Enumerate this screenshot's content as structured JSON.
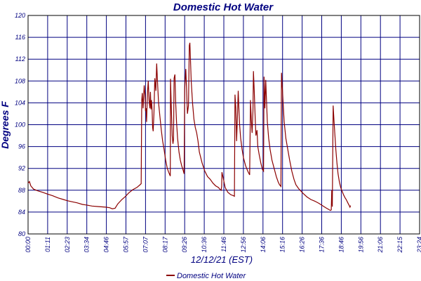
{
  "chart_data": {
    "type": "line",
    "title": "Domestic Hot Water",
    "xlabel": "12/12/21 (EST)",
    "ylabel": "Degrees F",
    "ylim": [
      80,
      120
    ],
    "y_ticks": [
      "80",
      "84",
      "88",
      "92",
      "96",
      "100",
      "104",
      "108",
      "112",
      "116",
      "120"
    ],
    "x_range_minutes": [
      0,
      1440
    ],
    "x_ticks": [
      "00:00",
      "01:11",
      "02:23",
      "03:34",
      "04:46",
      "05:57",
      "07:07",
      "08:17",
      "09:26",
      "10:36",
      "11:46",
      "12:56",
      "14:06",
      "15:16",
      "16:26",
      "17:36",
      "18:46",
      "19:56",
      "21:06",
      "22:15",
      "23:24"
    ],
    "legend": {
      "position": "bottom-center",
      "label": "Domestic Hot Water"
    },
    "grid": true,
    "colors": {
      "line": "#8b0000",
      "text": "#000080",
      "grid": "#000080",
      "axis": "#000000"
    },
    "series": [
      {
        "name": "Domestic Hot Water",
        "points": [
          [
            0,
            89.3
          ],
          [
            5,
            89.6
          ],
          [
            10,
            88.8
          ],
          [
            20,
            88.2
          ],
          [
            35,
            87.9
          ],
          [
            55,
            87.6
          ],
          [
            71,
            87.3
          ],
          [
            90,
            87.0
          ],
          [
            110,
            86.6
          ],
          [
            130,
            86.3
          ],
          [
            143,
            86.1
          ],
          [
            160,
            85.9
          ],
          [
            180,
            85.7
          ],
          [
            200,
            85.4
          ],
          [
            214,
            85.3
          ],
          [
            235,
            85.1
          ],
          [
            260,
            85.0
          ],
          [
            286,
            84.9
          ],
          [
            300,
            84.8
          ],
          [
            310,
            84.6
          ],
          [
            320,
            84.7
          ],
          [
            330,
            85.5
          ],
          [
            345,
            86.3
          ],
          [
            357,
            86.8
          ],
          [
            370,
            87.5
          ],
          [
            385,
            88.1
          ],
          [
            400,
            88.5
          ],
          [
            412,
            89.0
          ],
          [
            416,
            89.2
          ],
          [
            418,
            104.5
          ],
          [
            420,
            105.8
          ],
          [
            423,
            103.0
          ],
          [
            427,
            107.2
          ],
          [
            430,
            105.5
          ],
          [
            432,
            102.5
          ],
          [
            434,
            103.0
          ],
          [
            436,
            100.5
          ],
          [
            438,
            104.0
          ],
          [
            440,
            106.5
          ],
          [
            442,
            108.0
          ],
          [
            445,
            104.5
          ],
          [
            448,
            103.0
          ],
          [
            450,
            106.0
          ],
          [
            452,
            102.8
          ],
          [
            454,
            104.5
          ],
          [
            456,
            103.0
          ],
          [
            458,
            99.5
          ],
          [
            460,
            98.8
          ],
          [
            463,
            102.0
          ],
          [
            466,
            108.5
          ],
          [
            470,
            106.2
          ],
          [
            473,
            111.2
          ],
          [
            477,
            107.0
          ],
          [
            480,
            104.0
          ],
          [
            485,
            101.5
          ],
          [
            490,
            99.0
          ],
          [
            495,
            97.0
          ],
          [
            500,
            95.5
          ],
          [
            506,
            93.5
          ],
          [
            512,
            92.0
          ],
          [
            518,
            91.2
          ],
          [
            523,
            90.6
          ],
          [
            524,
            108.4
          ],
          [
            527,
            103.0
          ],
          [
            530,
            98.0
          ],
          [
            533,
            96.5
          ],
          [
            535,
            97.3
          ],
          [
            537,
            108.5
          ],
          [
            540,
            109.2
          ],
          [
            543,
            104.0
          ],
          [
            546,
            100.5
          ],
          [
            550,
            97.5
          ],
          [
            555,
            95.0
          ],
          [
            560,
            93.5
          ],
          [
            565,
            92.5
          ],
          [
            570,
            91.7
          ],
          [
            574,
            91.0
          ],
          [
            576,
            106.5
          ],
          [
            580,
            110.2
          ],
          [
            583,
            106.5
          ],
          [
            586,
            102.0
          ],
          [
            590,
            103.5
          ],
          [
            593,
            114.5
          ],
          [
            595,
            115.0
          ],
          [
            597,
            112.5
          ],
          [
            600,
            108.0
          ],
          [
            605,
            104.0
          ],
          [
            610,
            101.0
          ],
          [
            615,
            99.5
          ],
          [
            620,
            98.5
          ],
          [
            625,
            97.0
          ],
          [
            630,
            95.0
          ],
          [
            640,
            93.0
          ],
          [
            650,
            91.5
          ],
          [
            660,
            90.5
          ],
          [
            670,
            90.0
          ],
          [
            680,
            89.3
          ],
          [
            690,
            88.8
          ],
          [
            700,
            88.5
          ],
          [
            705,
            88.2
          ],
          [
            710,
            88.0
          ],
          [
            712,
            88.7
          ],
          [
            713,
            91.3
          ],
          [
            718,
            90.2
          ],
          [
            725,
            88.5
          ],
          [
            735,
            87.6
          ],
          [
            745,
            87.2
          ],
          [
            755,
            87.0
          ],
          [
            759,
            86.9
          ],
          [
            761,
            105.5
          ],
          [
            764,
            103.0
          ],
          [
            767,
            97.0
          ],
          [
            770,
            101.5
          ],
          [
            773,
            106.2
          ],
          [
            775,
            103.5
          ],
          [
            778,
            100.0
          ],
          [
            782,
            97.5
          ],
          [
            787,
            95.5
          ],
          [
            792,
            94.0
          ],
          [
            800,
            92.5
          ],
          [
            808,
            91.5
          ],
          [
            815,
            90.8
          ],
          [
            818,
            104.5
          ],
          [
            821,
            101.0
          ],
          [
            824,
            98.5
          ],
          [
            827,
            102.5
          ],
          [
            829,
            109.8
          ],
          [
            832,
            106.0
          ],
          [
            835,
            101.5
          ],
          [
            838,
            98.0
          ],
          [
            842,
            99.0
          ],
          [
            845,
            96.0
          ],
          [
            850,
            94.5
          ],
          [
            856,
            93.0
          ],
          [
            862,
            91.8
          ],
          [
            866,
            91.5
          ],
          [
            868,
            108.8
          ],
          [
            871,
            103.0
          ],
          [
            874,
            108.2
          ],
          [
            877,
            104.5
          ],
          [
            880,
            100.5
          ],
          [
            885,
            97.5
          ],
          [
            890,
            95.5
          ],
          [
            897,
            93.5
          ],
          [
            905,
            92.0
          ],
          [
            913,
            90.5
          ],
          [
            920,
            89.5
          ],
          [
            925,
            89.0
          ],
          [
            930,
            88.7
          ],
          [
            932,
            109.5
          ],
          [
            935,
            107.0
          ],
          [
            938,
            104.0
          ],
          [
            942,
            100.5
          ],
          [
            948,
            97.5
          ],
          [
            955,
            95.5
          ],
          [
            962,
            93.5
          ],
          [
            970,
            91.5
          ],
          [
            978,
            90.0
          ],
          [
            985,
            89.0
          ],
          [
            995,
            88.3
          ],
          [
            1010,
            87.5
          ],
          [
            1025,
            86.8
          ],
          [
            1040,
            86.3
          ],
          [
            1055,
            86.0
          ],
          [
            1070,
            85.6
          ],
          [
            1085,
            85.1
          ],
          [
            1095,
            84.8
          ],
          [
            1105,
            84.5
          ],
          [
            1112,
            84.3
          ],
          [
            1115,
            84.4
          ],
          [
            1117,
            88.0
          ],
          [
            1119,
            85.0
          ],
          [
            1122,
            103.5
          ],
          [
            1125,
            101.0
          ],
          [
            1128,
            98.5
          ],
          [
            1132,
            95.5
          ],
          [
            1136,
            93.0
          ],
          [
            1140,
            91.0
          ],
          [
            1145,
            89.5
          ],
          [
            1150,
            88.5
          ],
          [
            1155,
            87.8
          ],
          [
            1160,
            87.2
          ],
          [
            1165,
            86.7
          ],
          [
            1170,
            86.3
          ],
          [
            1176,
            85.7
          ],
          [
            1180,
            85.3
          ],
          [
            1184,
            84.9
          ],
          [
            1186,
            85.2
          ]
        ]
      }
    ]
  }
}
